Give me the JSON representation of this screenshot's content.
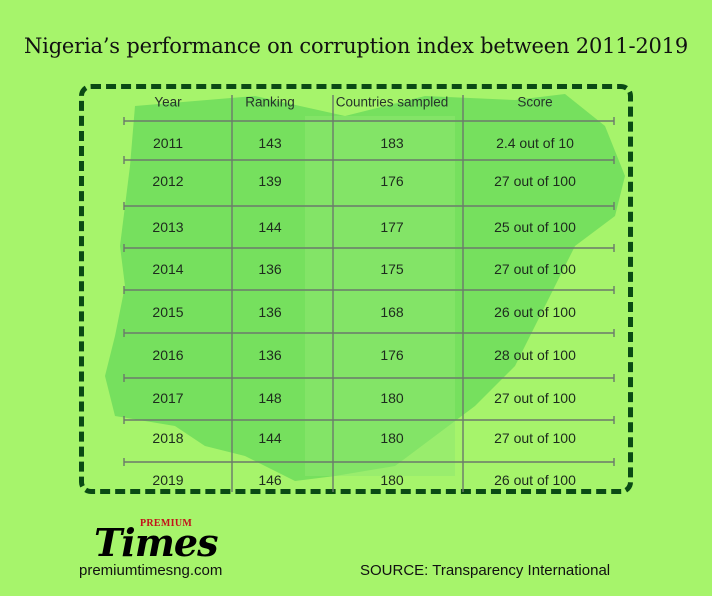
{
  "title": "Nigeria’s performance on corruption index between 2011-2019",
  "chart_data": {
    "type": "table",
    "columns": [
      "Year",
      "Ranking",
      "Countries sampled",
      "Score"
    ],
    "rows": [
      [
        "2011",
        "143",
        "183",
        "2.4 out of 10"
      ],
      [
        "2012",
        "139",
        "176",
        "27 out of 100"
      ],
      [
        "2013",
        "144",
        "177",
        "25 out of 100"
      ],
      [
        "2014",
        "136",
        "175",
        "27 out of 100"
      ],
      [
        "2015",
        "136",
        "168",
        "26 out of 100"
      ],
      [
        "2016",
        "136",
        "176",
        "28 out of 100"
      ],
      [
        "2017",
        "148",
        "180",
        "27 out of 100"
      ],
      [
        "2018",
        "144",
        "180",
        "27 out of 100"
      ],
      [
        "2019",
        "146",
        "180",
        "26 out of 100"
      ]
    ]
  },
  "logo": {
    "premium": "PREMIUM",
    "times": "Times"
  },
  "website": "premiumtimesng.com",
  "source": "SOURCE: Transparency International",
  "colors": {
    "background": "#a6f46b",
    "map": "#6ddc5c",
    "frame": "#0a4a14",
    "grid": "#6b7a6b"
  }
}
